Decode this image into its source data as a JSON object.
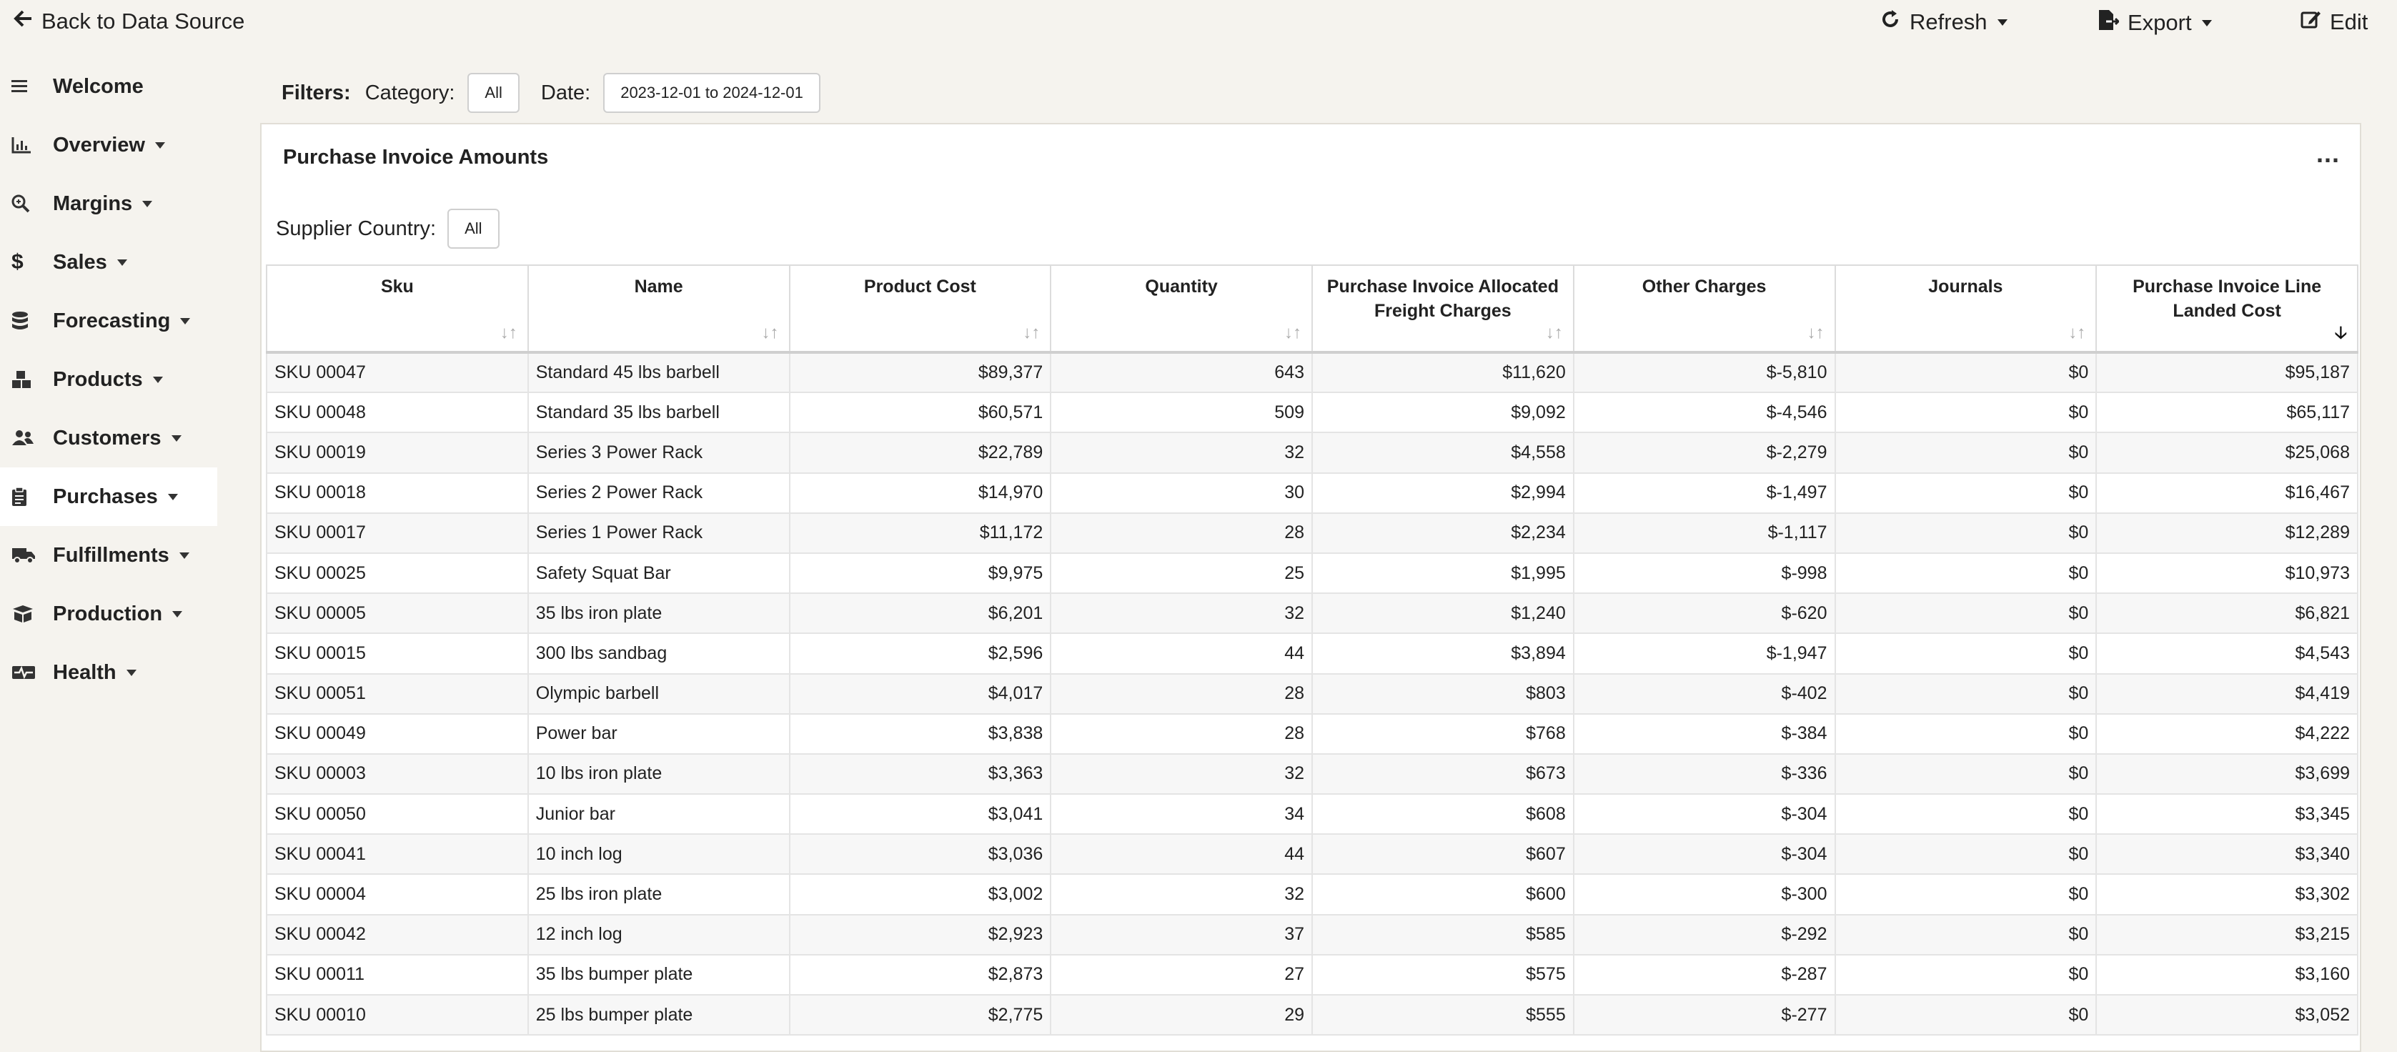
{
  "topbar": {
    "back_label": "Back to Data Source",
    "refresh_label": "Refresh",
    "export_label": "Export",
    "edit_label": "Edit"
  },
  "sidebar": {
    "items": [
      {
        "label": "Welcome",
        "icon": "menu-icon"
      },
      {
        "label": "Overview",
        "icon": "chart-icon"
      },
      {
        "label": "Margins",
        "icon": "magnify-icon"
      },
      {
        "label": "Sales",
        "icon": "dollar-icon"
      },
      {
        "label": "Forecasting",
        "icon": "database-icon"
      },
      {
        "label": "Products",
        "icon": "boxes-icon"
      },
      {
        "label": "Customers",
        "icon": "users-icon"
      },
      {
        "label": "Purchases",
        "icon": "clipboard-icon"
      },
      {
        "label": "Fulfillments",
        "icon": "truck-icon"
      },
      {
        "label": "Production",
        "icon": "package-icon"
      },
      {
        "label": "Health",
        "icon": "heartbeat-icon"
      }
    ],
    "active": "Purchases"
  },
  "filters": {
    "label": "Filters:",
    "category_label": "Category:",
    "category_value": "All",
    "date_label": "Date:",
    "date_value": "2023-12-01 to 2024-12-01"
  },
  "card": {
    "title": "Purchase Invoice Amounts",
    "menu": "...",
    "supplier_country_label": "Supplier Country:",
    "supplier_country_value": "All"
  },
  "table": {
    "headers": [
      "Sku",
      "Name",
      "Product Cost",
      "Quantity",
      "Purchase Invoice Allocated Freight Charges",
      "Other Charges",
      "Journals",
      "Purchase Invoice Line Landed Cost"
    ],
    "sorted_column": "Purchase Invoice Line Landed Cost",
    "sort_direction": "descending",
    "rows": [
      [
        "SKU 00047",
        "Standard 45 lbs barbell",
        "$89,377",
        "643",
        "$11,620",
        "$-5,810",
        "$0",
        "$95,187"
      ],
      [
        "SKU 00048",
        "Standard 35 lbs barbell",
        "$60,571",
        "509",
        "$9,092",
        "$-4,546",
        "$0",
        "$65,117"
      ],
      [
        "SKU 00019",
        "Series 3 Power Rack",
        "$22,789",
        "32",
        "$4,558",
        "$-2,279",
        "$0",
        "$25,068"
      ],
      [
        "SKU 00018",
        "Series 2 Power Rack",
        "$14,970",
        "30",
        "$2,994",
        "$-1,497",
        "$0",
        "$16,467"
      ],
      [
        "SKU 00017",
        "Series 1 Power Rack",
        "$11,172",
        "28",
        "$2,234",
        "$-1,117",
        "$0",
        "$12,289"
      ],
      [
        "SKU 00025",
        "Safety Squat Bar",
        "$9,975",
        "25",
        "$1,995",
        "$-998",
        "$0",
        "$10,973"
      ],
      [
        "SKU 00005",
        "35 lbs iron plate",
        "$6,201",
        "32",
        "$1,240",
        "$-620",
        "$0",
        "$6,821"
      ],
      [
        "SKU 00015",
        "300 lbs sandbag",
        "$2,596",
        "44",
        "$3,894",
        "$-1,947",
        "$0",
        "$4,543"
      ],
      [
        "SKU 00051",
        "Olympic barbell",
        "$4,017",
        "28",
        "$803",
        "$-402",
        "$0",
        "$4,419"
      ],
      [
        "SKU 00049",
        "Power bar",
        "$3,838",
        "28",
        "$768",
        "$-384",
        "$0",
        "$4,222"
      ],
      [
        "SKU 00003",
        "10 lbs iron plate",
        "$3,363",
        "32",
        "$673",
        "$-336",
        "$0",
        "$3,699"
      ],
      [
        "SKU 00050",
        "Junior bar",
        "$3,041",
        "34",
        "$608",
        "$-304",
        "$0",
        "$3,345"
      ],
      [
        "SKU 00041",
        "10 inch log",
        "$3,036",
        "44",
        "$607",
        "$-304",
        "$0",
        "$3,340"
      ],
      [
        "SKU 00004",
        "25 lbs iron plate",
        "$3,002",
        "32",
        "$600",
        "$-300",
        "$0",
        "$3,302"
      ],
      [
        "SKU 00042",
        "12 inch log",
        "$2,923",
        "37",
        "$585",
        "$-292",
        "$0",
        "$3,215"
      ],
      [
        "SKU 00011",
        "35 lbs bumper plate",
        "$2,873",
        "27",
        "$575",
        "$-287",
        "$0",
        "$3,160"
      ],
      [
        "SKU 00010",
        "25 lbs bumper plate",
        "$2,775",
        "29",
        "$555",
        "$-277",
        "$0",
        "$3,052"
      ]
    ]
  }
}
